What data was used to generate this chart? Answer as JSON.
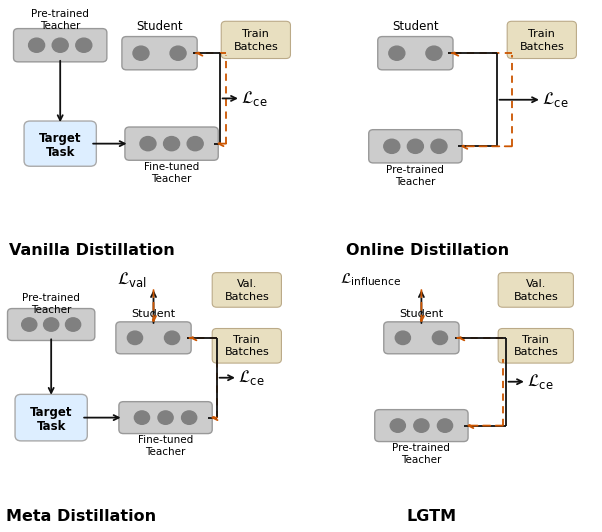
{
  "bg_color": "#ffffff",
  "node_bg": "#cccccc",
  "node_border": "#999999",
  "task_bg": "#ddeeff",
  "task_border": "#aaaaaa",
  "batch_bg": "#e8dfc0",
  "batch_border": "#bbaa88",
  "arrow_black": "#111111",
  "arrow_orange": "#cc5500",
  "title_fontsize": 11.5,
  "label_fontsize": 8.5,
  "sub_fontsize": 7.5,
  "math_fontsize": 12,
  "panel_titles": [
    "Vanilla Distillation",
    "Online Distillation",
    "Meta Distillation",
    "LGTM"
  ]
}
